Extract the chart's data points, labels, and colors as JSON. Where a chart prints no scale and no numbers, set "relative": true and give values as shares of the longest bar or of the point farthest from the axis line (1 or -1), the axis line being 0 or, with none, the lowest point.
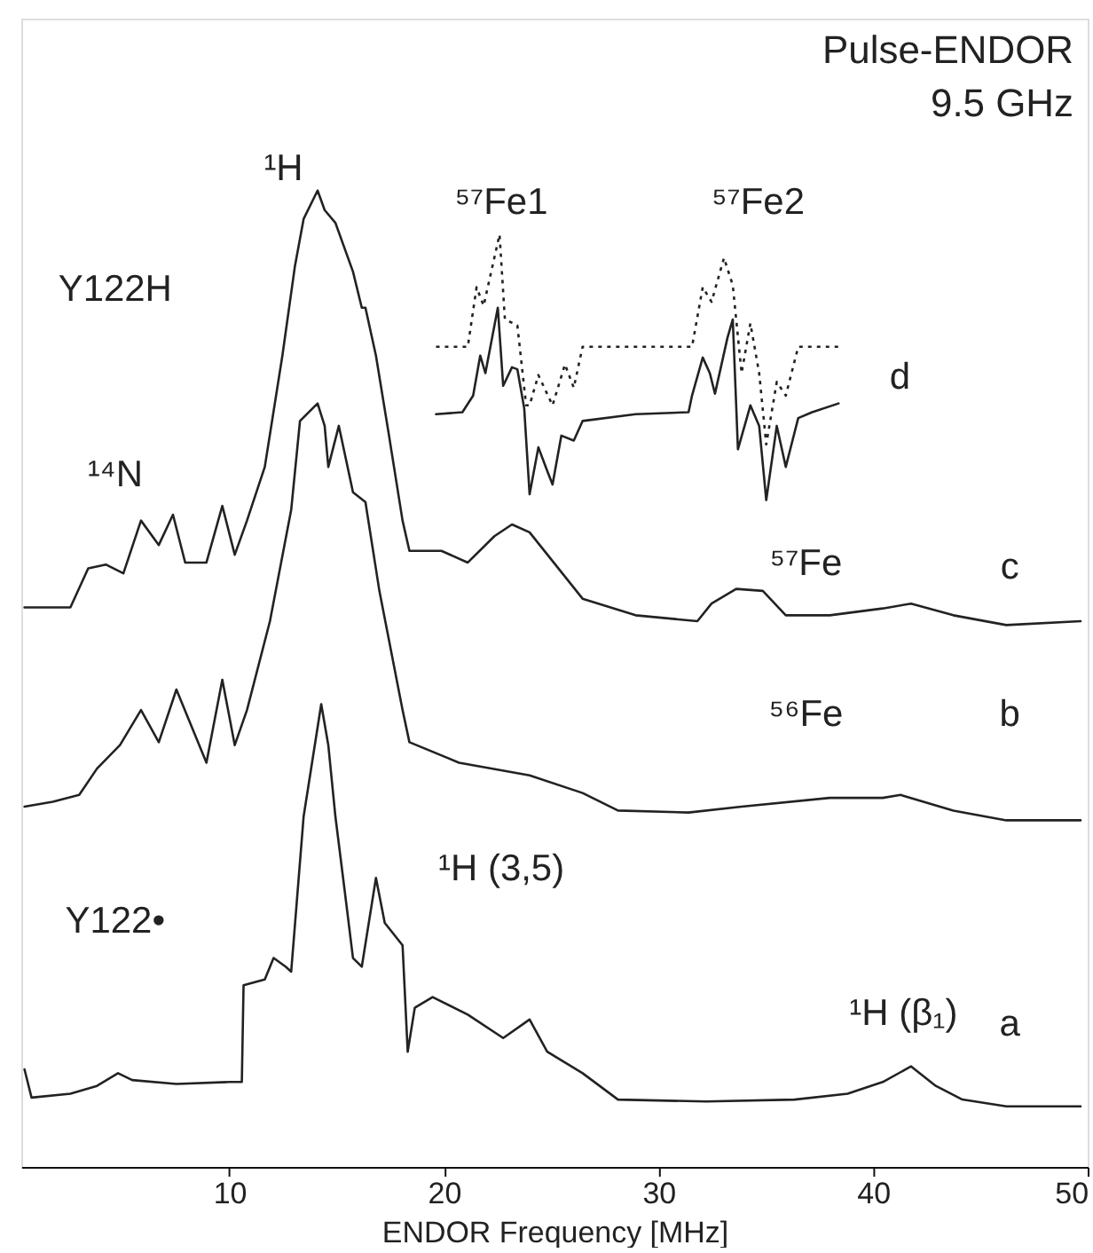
{
  "chart_data": {
    "type": "line",
    "relative": true,
    "xlabel": "ENDOR Frequency [MHz]",
    "xlim": [
      0.3,
      50
    ],
    "xticks": [
      10,
      20,
      30,
      40,
      50
    ],
    "tick_labels": "x",
    "grid": false,
    "marker": "none",
    "line_style": "solid",
    "series": [
      {
        "color": "#222222",
        "x": [
          0.45,
          0.78,
          2.59,
          3.83,
          4.81,
          5.47,
          7.53,
          10.0,
          10.58,
          10.66,
          11.65,
          12.06,
          12.63,
          12.88,
          13.46,
          14.28,
          14.61,
          14.94,
          15.35,
          15.76,
          16.17,
          16.83,
          17.24,
          18.07,
          18.31,
          18.64,
          19.47,
          21.11,
          22.76,
          23.99,
          24.81,
          26.46,
          28.11,
          32.22,
          36.34,
          38.81,
          40.45,
          41.77,
          42.92,
          44.16,
          46.21,
          49.67
        ],
        "values": [
          0.1,
          0.071,
          0.075,
          0.083,
          0.096,
          0.089,
          0.085,
          0.087,
          0.087,
          0.186,
          0.192,
          0.214,
          0.205,
          0.2,
          0.359,
          0.474,
          0.432,
          0.359,
          0.287,
          0.214,
          0.205,
          0.296,
          0.25,
          0.227,
          0.118,
          0.163,
          0.174,
          0.156,
          0.132,
          0.151,
          0.118,
          0.096,
          0.069,
          0.067,
          0.069,
          0.075,
          0.087,
          0.103,
          0.083,
          0.069,
          0.062,
          0.062
        ]
      },
      {
        "color": "#222222",
        "x": [
          0.45,
          1.77,
          3.0,
          3.83,
          4.9,
          5.88,
          6.71,
          7.53,
          8.93,
          9.67,
          10.25,
          10.82,
          11.89,
          12.88,
          13.29,
          14.11,
          14.44,
          14.61,
          15.1,
          15.76,
          16.34,
          16.99,
          18.07,
          18.39,
          20.7,
          23.99,
          26.46,
          28.11,
          31.4,
          33.87,
          37.98,
          40.45,
          41.28,
          43.74,
          46.21,
          49.67
        ],
        "values": [
          0.369,
          0.374,
          0.381,
          0.408,
          0.432,
          0.468,
          0.435,
          0.489,
          0.414,
          0.499,
          0.432,
          0.468,
          0.559,
          0.673,
          0.764,
          0.782,
          0.759,
          0.717,
          0.759,
          0.691,
          0.681,
          0.59,
          0.468,
          0.435,
          0.414,
          0.401,
          0.383,
          0.365,
          0.363,
          0.369,
          0.378,
          0.378,
          0.381,
          0.365,
          0.355,
          0.355
        ]
      },
      {
        "color": "#222222",
        "x": [
          0.45,
          2.59,
          3.42,
          4.24,
          5.06,
          5.88,
          6.71,
          7.37,
          7.94,
          8.93,
          9.67,
          10.25,
          10.82,
          11.65,
          12.47,
          13.05,
          13.46,
          14.11,
          14.44,
          14.94,
          15.76,
          16.17,
          16.34,
          16.83,
          17.41,
          18.07,
          18.39,
          19.88,
          21.11,
          22.35,
          23.17,
          23.99,
          26.46,
          28.93,
          31.81,
          32.47,
          33.62,
          34.86,
          35.93,
          37.98,
          40.45,
          41.77,
          43.74,
          46.21,
          49.67
        ],
        "values": [
          0.573,
          0.573,
          0.613,
          0.617,
          0.608,
          0.662,
          0.637,
          0.668,
          0.619,
          0.619,
          0.677,
          0.627,
          0.662,
          0.717,
          0.831,
          0.922,
          0.971,
          1.0,
          0.98,
          0.967,
          0.917,
          0.88,
          0.88,
          0.831,
          0.753,
          0.662,
          0.631,
          0.631,
          0.619,
          0.646,
          0.658,
          0.65,
          0.582,
          0.565,
          0.559,
          0.577,
          0.592,
          0.59,
          0.565,
          0.565,
          0.572,
          0.577,
          0.565,
          0.555,
          0.559
        ]
      },
      {
        "color": "#222222",
        "x": [
          19.63,
          20.86,
          21.36,
          21.69,
          21.93,
          22.51,
          22.76,
          23.17,
          23.42,
          23.74,
          23.99,
          24.4,
          24.81,
          25.06,
          25.47,
          26.05,
          26.46,
          28.93,
          31.4,
          31.56,
          32.06,
          32.39,
          32.63,
          33.21,
          33.46,
          33.7,
          34.28,
          34.69,
          35.02,
          35.51,
          35.93,
          36.51,
          37.16,
          38.39
        ],
        "values": [
          0.771,
          0.773,
          0.79,
          0.831,
          0.813,
          0.88,
          0.8,
          0.819,
          0.817,
          0.777,
          0.689,
          0.737,
          0.713,
          0.699,
          0.749,
          0.744,
          0.764,
          0.771,
          0.773,
          0.79,
          0.829,
          0.813,
          0.792,
          0.849,
          0.868,
          0.735,
          0.78,
          0.759,
          0.683,
          0.759,
          0.717,
          0.767,
          0.773,
          0.782
        ]
      },
      {
        "color": "#222222",
        "line_style": "dotted",
        "x": [
          19.63,
          21.11,
          21.52,
          21.85,
          22.1,
          22.59,
          22.84,
          23.42,
          23.83,
          23.99,
          24.4,
          25.06,
          25.64,
          26.05,
          26.46,
          31.56,
          32.06,
          32.47,
          33.05,
          33.46,
          33.87,
          34.28,
          34.69,
          35.02,
          35.51,
          35.93,
          36.51,
          38.39
        ],
        "values": [
          0.84,
          0.84,
          0.901,
          0.882,
          0.907,
          0.955,
          0.868,
          0.862,
          0.78,
          0.78,
          0.811,
          0.78,
          0.822,
          0.798,
          0.84,
          0.84,
          0.901,
          0.886,
          0.931,
          0.903,
          0.813,
          0.864,
          0.813,
          0.74,
          0.804,
          0.79,
          0.84,
          0.84
        ]
      }
    ],
    "annotations": [
      "Pulse-ENDOR",
      "9.5 GHz",
      "¹H",
      "¹⁴N",
      "Y122H",
      "⁵⁷Fe1",
      "⁵⁷Fe2",
      "d",
      "c",
      "b",
      "a",
      "⁵⁷Fe",
      "⁵⁶Fe",
      "Y122•",
      "¹H (3,5)",
      "¹H (β₁)"
    ]
  }
}
